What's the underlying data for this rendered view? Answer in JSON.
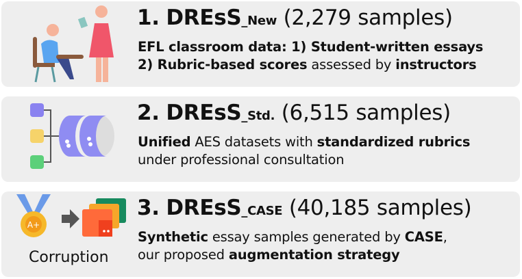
{
  "datasets": [
    {
      "number": "1.",
      "name": "DREsS",
      "subscript": "_New",
      "count": "(2,279 samples)",
      "lines": [
        [
          {
            "t": "EFL classroom data: 1) Student-written essays",
            "b": true
          }
        ],
        [
          {
            "t": "2) Rubric-based scores",
            "b": true
          },
          {
            "t": " assessed by ",
            "b": false
          },
          {
            "t": "instructors",
            "b": true
          }
        ]
      ],
      "icon": "classroom-teacher-student-icon"
    },
    {
      "number": "2.",
      "name": "DREsS",
      "subscript": "_Std.",
      "count": "(6,515 samples)",
      "lines": [
        [
          {
            "t": "Unified",
            "b": true
          },
          {
            "t": " AES datasets with ",
            "b": false
          },
          {
            "t": "standardized rubrics",
            "b": true
          }
        ],
        [
          {
            "t": "under professional consultation",
            "b": false
          }
        ]
      ],
      "icon": "database-merge-icon"
    },
    {
      "number": "3.",
      "name": "DREsS",
      "subscript": "_CASE",
      "count": "(40,185 samples)",
      "lines": [
        [
          {
            "t": "Synthetic",
            "b": true
          },
          {
            "t": " essay samples generated by ",
            "b": false
          },
          {
            "t": "CASE",
            "b": true
          },
          {
            "t": ",",
            "b": false
          }
        ],
        [
          {
            "t": "our proposed ",
            "b": false
          },
          {
            "t": "augmentation strategy",
            "b": true
          }
        ]
      ],
      "icon": "medal-arrow-folders-icon",
      "icon_label": "Corruption"
    }
  ]
}
